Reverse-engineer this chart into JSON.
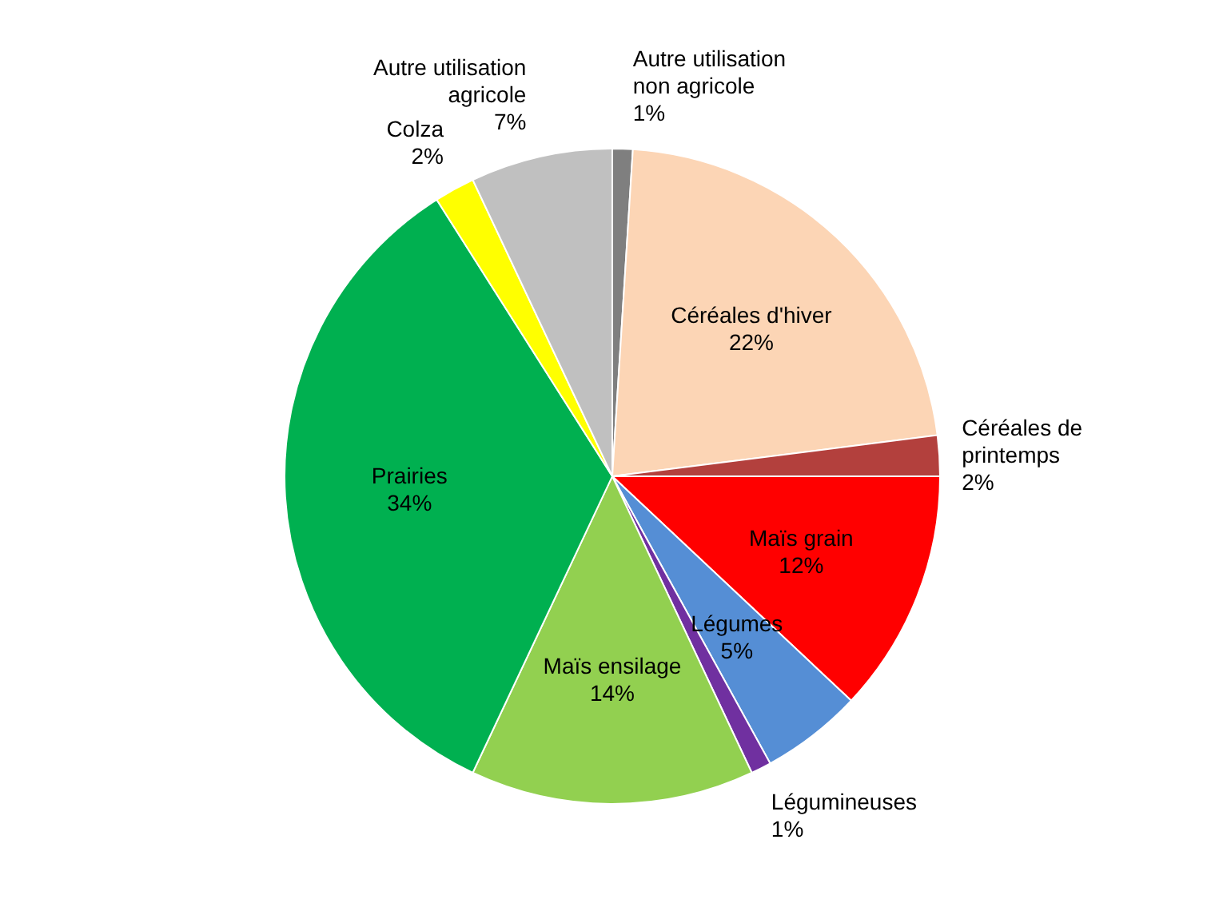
{
  "chart_data": {
    "type": "pie",
    "categories": [
      "Autre utilisation non agricole",
      "Céréales d'hiver",
      "Céréales de printemps",
      "Maïs grain",
      "Légumes",
      "Légumineuses",
      "Maïs ensilage",
      "Prairies",
      "Colza",
      "Autre utilisation agricole"
    ],
    "values": [
      1,
      22,
      2,
      12,
      5,
      1,
      14,
      34,
      2,
      7
    ],
    "value_labels": [
      "1%",
      "22%",
      "2%",
      "12%",
      "5%",
      "1%",
      "14%",
      "34%",
      "2%",
      "7%"
    ],
    "colors": [
      "#7f7f7f",
      "#fcd5b5",
      "#b3403d",
      "#ff0000",
      "#558ed5",
      "#7030a0",
      "#92d050",
      "#00b050",
      "#ffff00",
      "#c0c0c0"
    ],
    "legend": false
  }
}
